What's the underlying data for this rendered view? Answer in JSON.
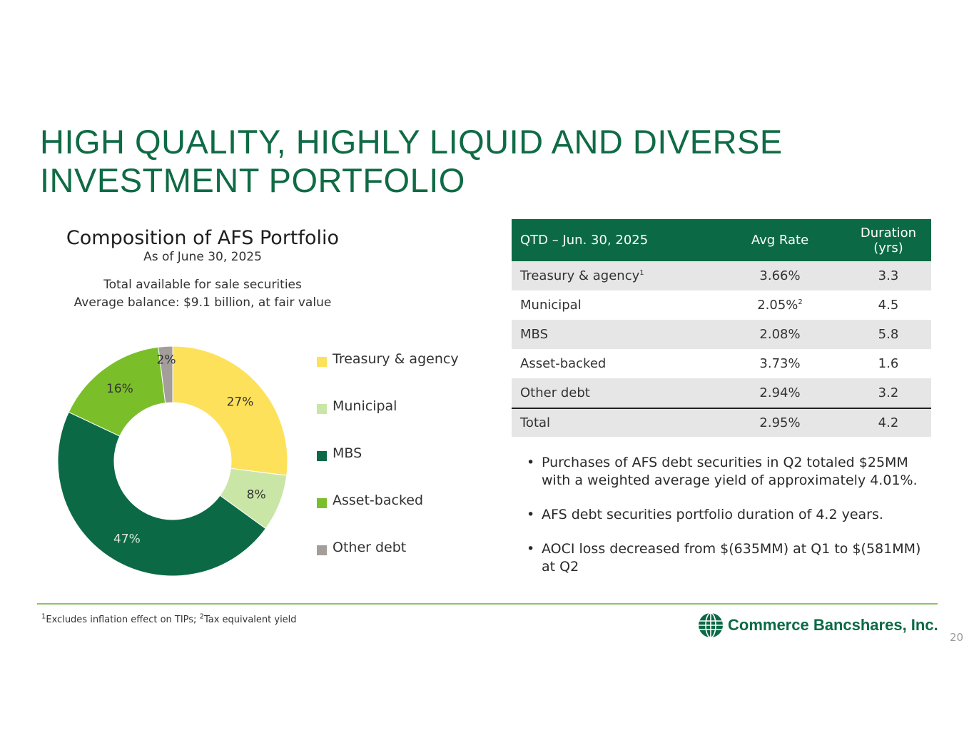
{
  "header": {
    "title_line1": "HIGH QUALITY, HIGHLY LIQUID AND DIVERSE",
    "title_line2": "INVESTMENT PORTFOLIO"
  },
  "chart_header": {
    "title": "Composition of AFS Portfolio",
    "as_of": "As of June 30, 2025",
    "subtitle_line1": "Total available for sale securities",
    "subtitle_line2": "Average balance: $9.1 billion, at fair value"
  },
  "chart_data": {
    "type": "pie",
    "variant": "donut",
    "title": "Composition of AFS Portfolio",
    "categories": [
      "Treasury & agency",
      "Municipal",
      "MBS",
      "Asset-backed",
      "Other debt"
    ],
    "values": [
      27,
      8,
      47,
      16,
      2
    ],
    "labels": [
      "27%",
      "8%",
      "47%",
      "16%",
      "2%"
    ],
    "colors": [
      "#fde15a",
      "#c9e6a6",
      "#0b6a45",
      "#7abf2a",
      "#a39e99"
    ],
    "label_colors": [
      "#333333",
      "#333333",
      "#d9e8d9",
      "#333333",
      "#333333"
    ],
    "legend": "right"
  },
  "table": {
    "headers": {
      "period": "QTD – Jun. 30, 2025",
      "rate": "Avg Rate",
      "duration_line1": "Duration",
      "duration_line2": "(yrs)"
    },
    "rows": [
      {
        "name": "Treasury & agency",
        "name_sup": "1",
        "rate": "3.66%",
        "rate_sup": "",
        "duration": "3.3"
      },
      {
        "name": "Municipal",
        "name_sup": "",
        "rate": "2.05%",
        "rate_sup": "2",
        "duration": "4.5"
      },
      {
        "name": "MBS",
        "name_sup": "",
        "rate": "2.08%",
        "rate_sup": "",
        "duration": "5.8"
      },
      {
        "name": "Asset-backed",
        "name_sup": "",
        "rate": "3.73%",
        "rate_sup": "",
        "duration": "1.6"
      },
      {
        "name": "Other debt",
        "name_sup": "",
        "rate": "2.94%",
        "rate_sup": "",
        "duration": "3.2"
      },
      {
        "name": "Total",
        "name_sup": "",
        "rate": "2.95%",
        "rate_sup": "",
        "duration": "4.2"
      }
    ]
  },
  "bullets": [
    "Purchases of AFS debt securities in Q2 totaled $25MM with a weighted average yield of approximately 4.01%.",
    "AFS debt securities portfolio duration of 4.2 years.",
    "AOCI loss decreased from $(635MM) at Q1 to $(581MM) at Q2"
  ],
  "footnote": {
    "sup1": "1",
    "text1": "Excludes inflation effect on TIPs; ",
    "sup2": "2",
    "text2": "Tax equivalent yield"
  },
  "logo": {
    "text": "Commerce Bancshares, Inc.",
    "icon": "globe-icon",
    "color": "#0b6a45"
  },
  "page_number": "20",
  "colors": {
    "brand_green": "#0b6a45",
    "title_green": "#0f6b45",
    "rule_green": "#8cc265",
    "row_shade": "#e6e6e6"
  }
}
